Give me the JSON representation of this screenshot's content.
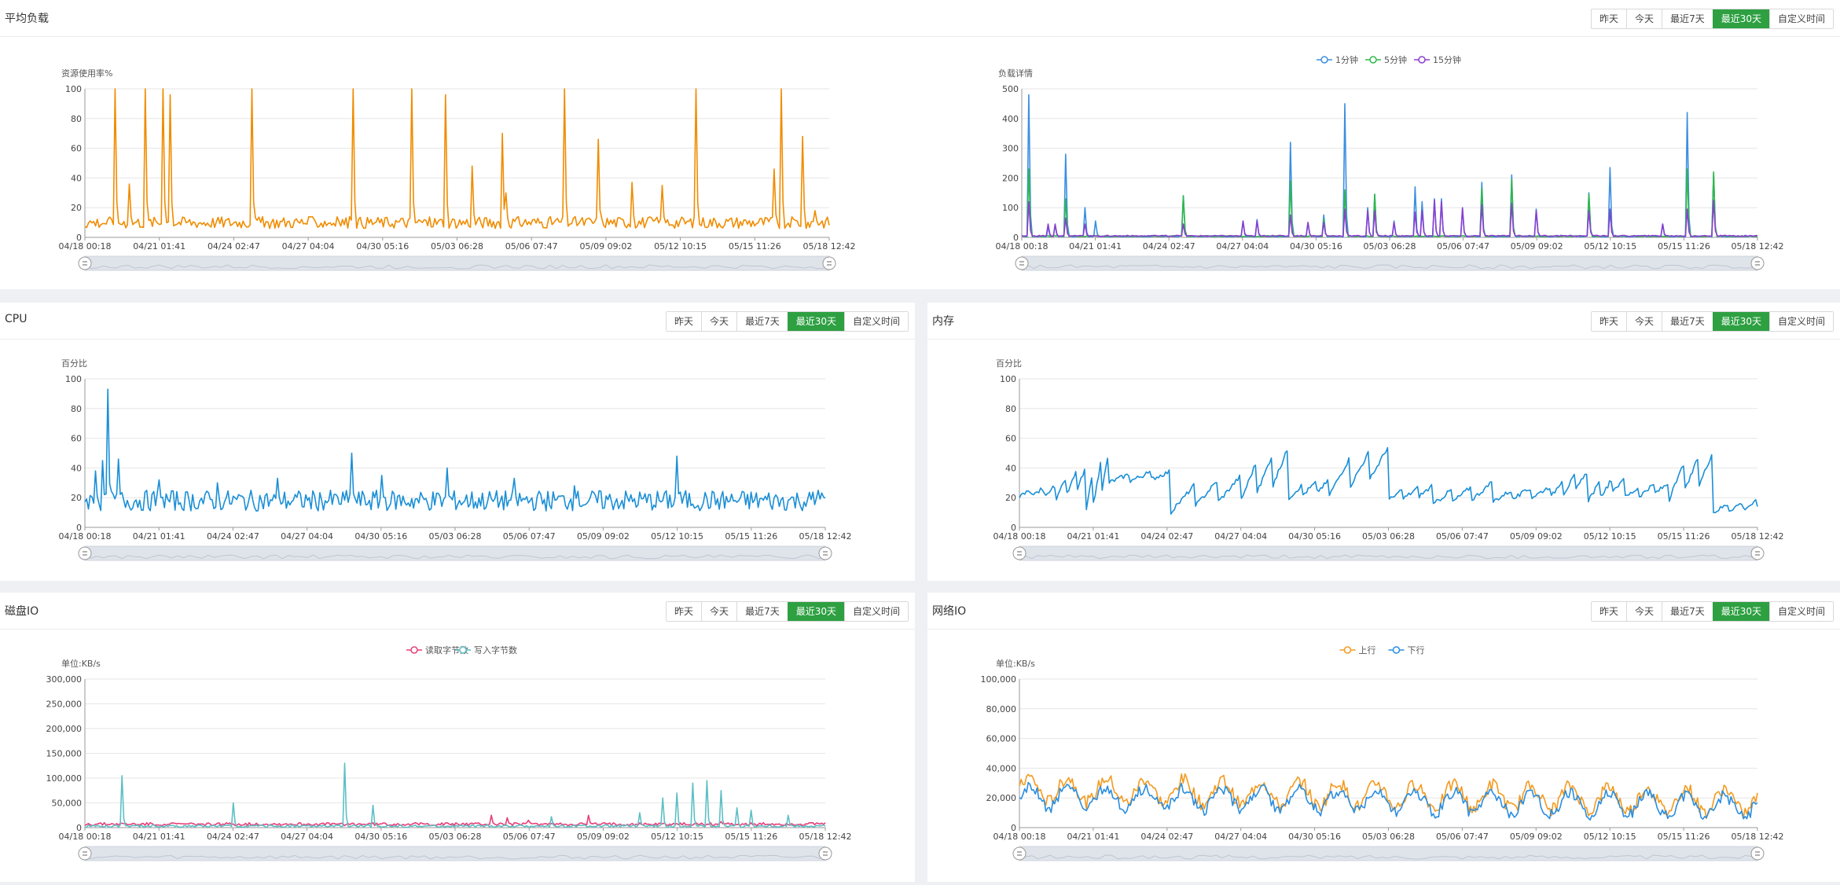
{
  "range_buttons": [
    "昨天",
    "今天",
    "最近7天",
    "最近30天",
    "自定义时间"
  ],
  "active_range": "最近30天",
  "x_ticks": [
    "04/18 00:18",
    "04/21 01:41",
    "04/24 02:47",
    "04/27 04:04",
    "04/30 05:16",
    "05/03 06:28",
    "05/06 07:47",
    "05/09 09:02",
    "05/12 10:15",
    "05/15 11:26",
    "05/18 12:42"
  ],
  "panels": {
    "load": {
      "title": "平均负载"
    },
    "cpu": {
      "title": "CPU"
    },
    "memory": {
      "title": "内存"
    },
    "disk": {
      "title": "磁盘IO"
    },
    "network": {
      "title": "网络IO"
    }
  },
  "chart_data": [
    {
      "id": "load-usage",
      "type": "line",
      "panel": "load",
      "ylabel": "资源使用率%",
      "ylim": [
        0,
        100
      ],
      "yticks": [
        0,
        20,
        40,
        60,
        80,
        100
      ],
      "grid": true,
      "legend": "none",
      "x_range": [
        "04/18 00:18",
        "05/18 12:42"
      ],
      "series": [
        {
          "color": "#f08c00",
          "baseline": 10,
          "noise": 4,
          "spikes": [
            [
              0.04,
              100
            ],
            [
              0.06,
              36
            ],
            [
              0.08,
              100
            ],
            [
              0.105,
              100
            ],
            [
              0.115,
              96
            ],
            [
              0.225,
              100
            ],
            [
              0.36,
              100
            ],
            [
              0.44,
              100
            ],
            [
              0.485,
              96
            ],
            [
              0.52,
              48
            ],
            [
              0.56,
              70
            ],
            [
              0.565,
              30
            ],
            [
              0.645,
              100
            ],
            [
              0.69,
              66
            ],
            [
              0.735,
              37
            ],
            [
              0.775,
              35
            ],
            [
              0.82,
              100
            ],
            [
              0.925,
              46
            ],
            [
              0.935,
              100
            ],
            [
              0.965,
              68
            ],
            [
              0.98,
              18
            ]
          ]
        }
      ]
    },
    {
      "id": "load-detail",
      "type": "line",
      "panel": "load",
      "ylabel": "负载详情",
      "ylim": [
        0,
        500
      ],
      "yticks": [
        0,
        100,
        200,
        300,
        400,
        500
      ],
      "grid": true,
      "legend": "top-center",
      "x_range": [
        "04/18 00:18",
        "05/18 12:42"
      ],
      "series": [
        {
          "name": "1分钟",
          "color": "#3b8fe0",
          "baseline": 3,
          "noise": 2,
          "spikes": [
            [
              0.01,
              480
            ],
            [
              0.035,
              35
            ],
            [
              0.045,
              40
            ],
            [
              0.06,
              280
            ],
            [
              0.085,
              100
            ],
            [
              0.1,
              55
            ],
            [
              0.22,
              140
            ],
            [
              0.3,
              55
            ],
            [
              0.32,
              60
            ],
            [
              0.365,
              320
            ],
            [
              0.39,
              50
            ],
            [
              0.41,
              75
            ],
            [
              0.44,
              450
            ],
            [
              0.47,
              100
            ],
            [
              0.48,
              145
            ],
            [
              0.505,
              55
            ],
            [
              0.535,
              170
            ],
            [
              0.545,
              120
            ],
            [
              0.56,
              130
            ],
            [
              0.57,
              130
            ],
            [
              0.6,
              95
            ],
            [
              0.625,
              185
            ],
            [
              0.665,
              210
            ],
            [
              0.7,
              95
            ],
            [
              0.77,
              150
            ],
            [
              0.8,
              235
            ],
            [
              0.87,
              45
            ],
            [
              0.905,
              420
            ],
            [
              0.94,
              215
            ]
          ]
        },
        {
          "name": "5分钟",
          "color": "#2fb84a",
          "baseline": 4,
          "noise": 2,
          "spikes": [
            [
              0.01,
              230
            ],
            [
              0.06,
              130
            ],
            [
              0.22,
              140
            ],
            [
              0.365,
              190
            ],
            [
              0.41,
              60
            ],
            [
              0.44,
              160
            ],
            [
              0.48,
              145
            ],
            [
              0.625,
              165
            ],
            [
              0.665,
              195
            ],
            [
              0.77,
              145
            ],
            [
              0.8,
              95
            ],
            [
              0.905,
              230
            ],
            [
              0.94,
              220
            ]
          ]
        },
        {
          "name": "15分钟",
          "color": "#8b3fd1",
          "baseline": 5,
          "noise": 2,
          "spikes": [
            [
              0.01,
              120
            ],
            [
              0.035,
              45
            ],
            [
              0.045,
              45
            ],
            [
              0.06,
              65
            ],
            [
              0.085,
              45
            ],
            [
              0.22,
              45
            ],
            [
              0.3,
              55
            ],
            [
              0.32,
              55
            ],
            [
              0.365,
              75
            ],
            [
              0.39,
              50
            ],
            [
              0.41,
              50
            ],
            [
              0.44,
              95
            ],
            [
              0.47,
              90
            ],
            [
              0.48,
              90
            ],
            [
              0.505,
              50
            ],
            [
              0.535,
              85
            ],
            [
              0.545,
              90
            ],
            [
              0.56,
              125
            ],
            [
              0.57,
              120
            ],
            [
              0.6,
              100
            ],
            [
              0.625,
              110
            ],
            [
              0.665,
              115
            ],
            [
              0.7,
              90
            ],
            [
              0.77,
              90
            ],
            [
              0.8,
              95
            ],
            [
              0.87,
              45
            ],
            [
              0.905,
              95
            ],
            [
              0.94,
              125
            ]
          ]
        }
      ]
    },
    {
      "id": "cpu",
      "type": "line",
      "panel": "cpu",
      "ylabel": "百分比",
      "ylim": [
        0,
        100
      ],
      "yticks": [
        0,
        20,
        40,
        60,
        80,
        100
      ],
      "grid": true,
      "legend": "none",
      "x_range": [
        "04/18 00:18",
        "05/18 12:42"
      ],
      "series": [
        {
          "color": "#1a8fd6",
          "baseline": 18,
          "noise": 7,
          "spikes": [
            [
              0.015,
              38
            ],
            [
              0.025,
              45
            ],
            [
              0.03,
              93
            ],
            [
              0.045,
              46
            ],
            [
              0.1,
              32
            ],
            [
              0.18,
              30
            ],
            [
              0.26,
              33
            ],
            [
              0.36,
              50
            ],
            [
              0.4,
              35
            ],
            [
              0.49,
              40
            ],
            [
              0.58,
              33
            ],
            [
              0.66,
              28
            ],
            [
              0.8,
              48
            ],
            [
              0.99,
              25
            ]
          ]
        }
      ]
    },
    {
      "id": "memory",
      "type": "line",
      "panel": "memory",
      "ylabel": "百分比",
      "ylim": [
        0,
        100
      ],
      "yticks": [
        0,
        20,
        40,
        60,
        80,
        100
      ],
      "grid": true,
      "legend": "none",
      "x_range": [
        "04/18 00:18",
        "05/18 12:42"
      ],
      "series": [
        {
          "color": "#1a8fd6",
          "sawtooth": [
            [
              0.0,
              20,
              28
            ],
            [
              0.05,
              18,
              40
            ],
            [
              0.09,
              10,
              48
            ],
            [
              0.12,
              30,
              38
            ],
            [
              0.205,
              10,
              35
            ],
            [
              0.3,
              18,
              55
            ],
            [
              0.365,
              20,
              32
            ],
            [
              0.42,
              22,
              55
            ],
            [
              0.5,
              18,
              28
            ],
            [
              0.56,
              15,
              30
            ],
            [
              0.64,
              17,
              28
            ],
            [
              0.72,
              20,
              38
            ],
            [
              0.77,
              18,
              35
            ],
            [
              0.82,
              20,
              30
            ],
            [
              0.88,
              18,
              52
            ],
            [
              0.94,
              10,
              18
            ]
          ]
        }
      ]
    },
    {
      "id": "disk",
      "type": "line",
      "panel": "disk",
      "ylabel": "单位:KB/s",
      "ylim": [
        0,
        300000
      ],
      "yticks": [
        0,
        50000,
        100000,
        150000,
        200000,
        250000,
        300000
      ],
      "grid": true,
      "legend": "top-center",
      "x_range": [
        "04/18 00:18",
        "05/18 12:42"
      ],
      "series": [
        {
          "name": "读取字节数",
          "color": "#e83e7a",
          "baseline": 7000,
          "noise": 3000,
          "spikes": [
            [
              0.55,
              25000
            ],
            [
              0.57,
              20000
            ],
            [
              0.6,
              15000
            ],
            [
              0.68,
              25000
            ],
            [
              0.86,
              12000
            ]
          ]
        },
        {
          "name": "写入字节数",
          "color": "#5dbfc4",
          "baseline": 3000,
          "noise": 2500,
          "spikes": [
            [
              0.05,
              105000
            ],
            [
              0.2,
              50000
            ],
            [
              0.35,
              130000
            ],
            [
              0.39,
              45000
            ],
            [
              0.63,
              22000
            ],
            [
              0.75,
              30000
            ],
            [
              0.78,
              60000
            ],
            [
              0.8,
              70000
            ],
            [
              0.82,
              90000
            ],
            [
              0.84,
              95000
            ],
            [
              0.86,
              75000
            ],
            [
              0.88,
              40000
            ],
            [
              0.9,
              35000
            ],
            [
              0.95,
              25000
            ]
          ]
        }
      ]
    },
    {
      "id": "network",
      "type": "line",
      "panel": "network",
      "ylabel": "单位:KB/s",
      "ylim": [
        0,
        100000
      ],
      "yticks": [
        0,
        20000,
        40000,
        60000,
        80000,
        100000
      ],
      "grid": true,
      "legend": "top-center",
      "x_range": [
        "04/18 00:18",
        "05/18 12:42"
      ],
      "series": [
        {
          "name": "上行",
          "color": "#f39a1e",
          "baseline": 26000,
          "noise": 9000,
          "decay": 8000
        },
        {
          "name": "下行",
          "color": "#2a8ee0",
          "baseline": 21000,
          "noise": 8000,
          "decay": 7000
        }
      ]
    }
  ]
}
